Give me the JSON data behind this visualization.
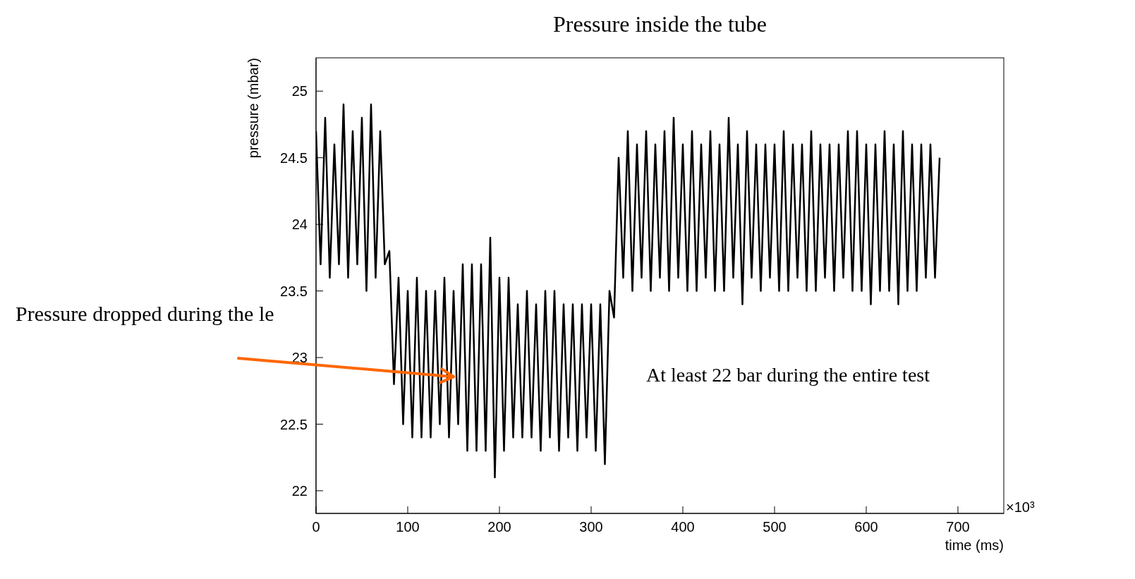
{
  "chart_data": {
    "type": "line",
    "title": "Pressure inside the tube",
    "xlabel": "time (ms)",
    "ylabel": "pressure (mbar)",
    "x": [
      0,
      5,
      10,
      15,
      20,
      25,
      30,
      35,
      40,
      45,
      50,
      55,
      60,
      65,
      70,
      75,
      80,
      85,
      90,
      95,
      100,
      105,
      110,
      115,
      120,
      125,
      130,
      135,
      140,
      145,
      150,
      155,
      160,
      165,
      170,
      175,
      180,
      185,
      190,
      195,
      200,
      205,
      210,
      215,
      220,
      225,
      230,
      235,
      240,
      245,
      250,
      255,
      260,
      265,
      270,
      275,
      280,
      285,
      290,
      295,
      300,
      305,
      310,
      315,
      320,
      325,
      330,
      335,
      340,
      345,
      350,
      355,
      360,
      365,
      370,
      375,
      380,
      385,
      390,
      395,
      400,
      405,
      410,
      415,
      420,
      425,
      430,
      435,
      440,
      445,
      450,
      455,
      460,
      465,
      470,
      475,
      480,
      485,
      490,
      495,
      500,
      505,
      510,
      515,
      520,
      525,
      530,
      535,
      540,
      545,
      550,
      555,
      560,
      565,
      570,
      575,
      580,
      585,
      590,
      595,
      600,
      605,
      610,
      615,
      620,
      625,
      630,
      635,
      640,
      645,
      650,
      655,
      660,
      665,
      670,
      675,
      680
    ],
    "series": [
      {
        "color": "#000000",
        "values": [
          24.7,
          23.7,
          24.8,
          23.6,
          24.6,
          23.7,
          24.9,
          23.6,
          24.7,
          23.7,
          24.8,
          23.5,
          24.9,
          23.6,
          24.7,
          23.7,
          23.8,
          22.8,
          23.6,
          22.5,
          23.5,
          22.4,
          23.6,
          22.4,
          23.5,
          22.4,
          23.5,
          22.5,
          23.6,
          22.4,
          23.5,
          22.5,
          23.7,
          22.3,
          23.7,
          22.3,
          23.7,
          22.3,
          23.9,
          22.1,
          23.6,
          22.3,
          23.6,
          22.4,
          23.4,
          22.4,
          23.5,
          22.4,
          23.4,
          22.3,
          23.5,
          22.4,
          23.5,
          22.3,
          23.4,
          22.4,
          23.4,
          22.3,
          23.4,
          22.4,
          23.4,
          22.3,
          23.4,
          22.2,
          23.5,
          23.3,
          24.5,
          23.6,
          24.7,
          23.5,
          24.6,
          23.6,
          24.7,
          23.5,
          24.6,
          23.6,
          24.7,
          23.5,
          24.8,
          23.6,
          24.6,
          23.5,
          24.7,
          23.5,
          24.6,
          23.6,
          24.7,
          23.5,
          24.6,
          23.5,
          24.8,
          23.6,
          24.6,
          23.4,
          24.7,
          23.6,
          24.6,
          23.5,
          24.6,
          23.6,
          24.6,
          23.5,
          24.7,
          23.5,
          24.6,
          23.6,
          24.6,
          23.5,
          24.7,
          23.5,
          24.6,
          23.6,
          24.6,
          23.5,
          24.6,
          23.6,
          24.7,
          23.5,
          24.7,
          23.5,
          24.6,
          23.4,
          24.6,
          23.5,
          24.7,
          23.5,
          24.6,
          23.4,
          24.7,
          23.5,
          24.6,
          23.5,
          24.6,
          23.6,
          24.6,
          23.6,
          24.5
        ]
      }
    ],
    "xlim": [
      0,
      750
    ],
    "xticks": [
      0,
      100,
      200,
      300,
      400,
      500,
      600,
      700
    ],
    "ylim": [
      21.83,
      25.25
    ],
    "yticks": [
      22,
      22.5,
      23,
      23.5,
      24,
      24.5,
      25
    ],
    "grid": false,
    "legend": false,
    "marker": "none",
    "line_style": "solid",
    "annotations": [
      "Pressure dropped during the le",
      "At least 22 bar during the entire test",
      "×10³"
    ]
  }
}
